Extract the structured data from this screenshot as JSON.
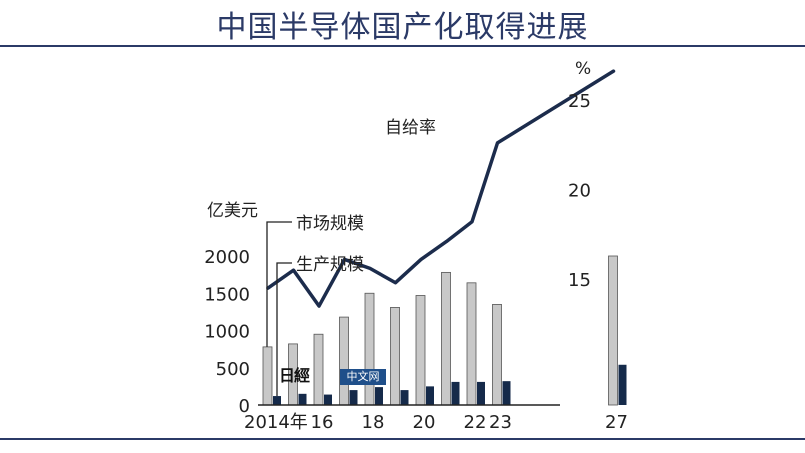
{
  "header": {
    "title": "中国半导体国产化取得进展"
  },
  "watermark": {
    "logo": "日經",
    "badge": "中文网"
  },
  "chart_data": {
    "type": "bar",
    "ylabel": "亿美元",
    "ylim": [
      0,
      2000
    ],
    "yticks": [
      0,
      500,
      1000,
      1500,
      2000
    ],
    "x": [
      2014,
      2015,
      2016,
      2017,
      2018,
      2019,
      2020,
      2021,
      2022,
      2023,
      2027
    ],
    "xtick_labels": [
      {
        "x": 2014,
        "label": "2014年"
      },
      {
        "x": 2016,
        "label": "16"
      },
      {
        "x": 2018,
        "label": "18"
      },
      {
        "x": 2020,
        "label": "20"
      },
      {
        "x": 2022,
        "label": "22"
      },
      {
        "x": 2023,
        "label": "23"
      },
      {
        "x": 2027,
        "label": "27"
      }
    ],
    "series": [
      {
        "name": "市场规模",
        "color": "#c8c8c8",
        "values": [
          780,
          820,
          950,
          1180,
          1500,
          1310,
          1470,
          1780,
          1640,
          1350,
          2000
        ]
      },
      {
        "name": "生产规模",
        "color": "#152a4a",
        "values": [
          120,
          150,
          140,
          200,
          240,
          200,
          250,
          310,
          310,
          320,
          540
        ]
      }
    ],
    "line": {
      "name": "自给率",
      "unit": "%",
      "ylim": [
        13,
        27
      ],
      "yticks": [
        15,
        20,
        25
      ],
      "values": [
        14.5,
        15.5,
        13.5,
        16.1,
        15.6,
        14.8,
        16.1,
        17.1,
        18.2,
        22.6,
        26.6
      ]
    }
  }
}
